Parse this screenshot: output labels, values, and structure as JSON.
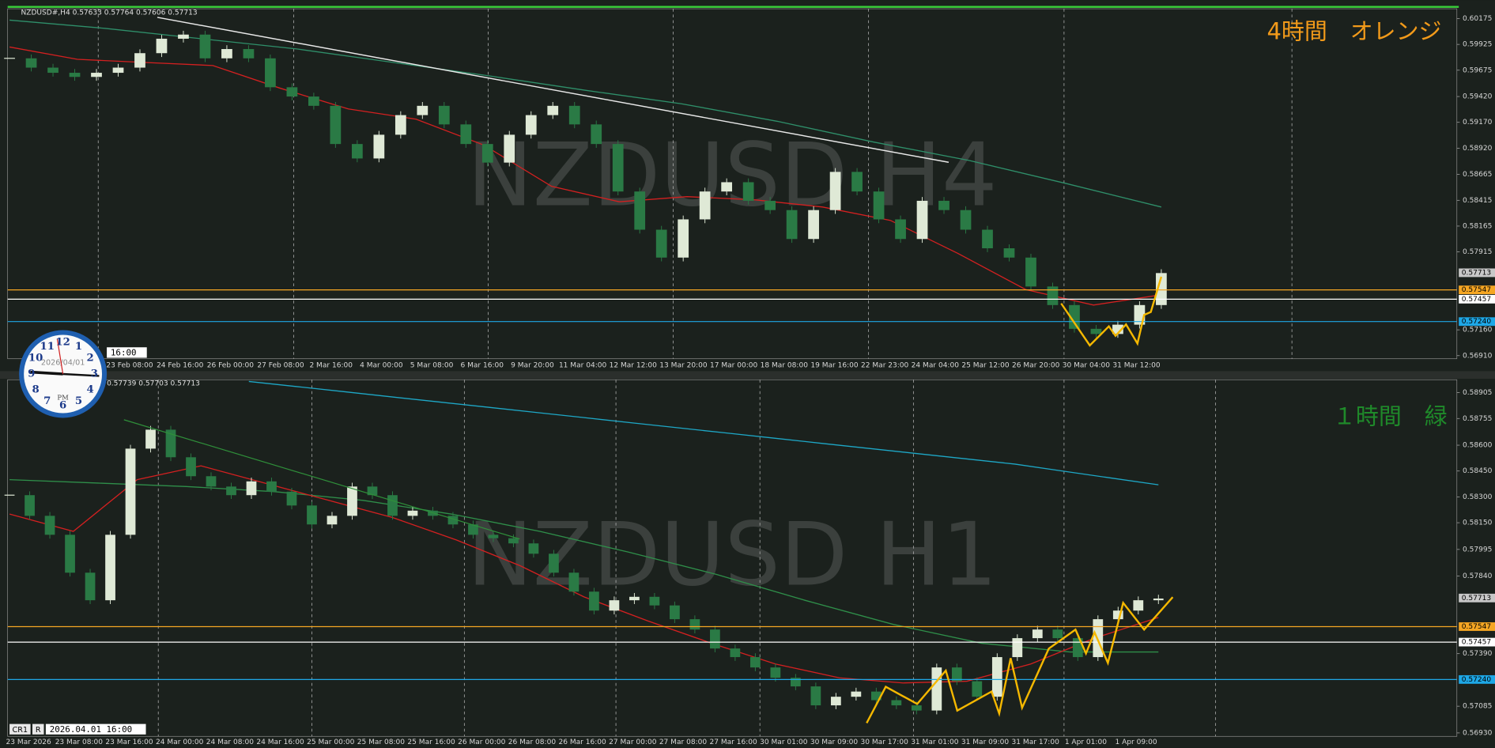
{
  "panels": [
    {
      "header": "NZDUSD#,H4  0.57633 0.57764 0.57606 0.57713",
      "watermark": "NZDUSD H4",
      "annotation": "4時間　オレンジ",
      "annotation_color": "#f29a1a",
      "time_box": "16:00",
      "ylim": [
        0.5688,
        0.6027
      ],
      "yticks": [
        {
          "value": 0.60175,
          "label": "0.60175"
        },
        {
          "value": 0.59925,
          "label": "0.59925"
        },
        {
          "value": 0.59675,
          "label": "0.59675"
        },
        {
          "value": 0.5942,
          "label": "0.59420"
        },
        {
          "value": 0.5917,
          "label": "0.59170"
        },
        {
          "value": 0.5892,
          "label": "0.58920"
        },
        {
          "value": 0.58665,
          "label": "0.58665"
        },
        {
          "value": 0.58415,
          "label": "0.58415"
        },
        {
          "value": 0.58165,
          "label": "0.58165"
        },
        {
          "value": 0.57915,
          "label": "0.57915"
        },
        {
          "value": 0.5716,
          "label": "0.57160"
        },
        {
          "value": 0.5691,
          "label": "0.56910"
        }
      ],
      "xlabels": [
        "23 Feb 08:00",
        "24 Feb 16:00",
        "26 Feb 00:00",
        "27 Feb 08:00",
        "2 Mar 16:00",
        "4 Mar 00:00",
        "5 Mar 08:00",
        "6 Mar 16:00",
        "9 Mar 20:00",
        "11 Mar 04:00",
        "12 Mar 12:00",
        "13 Mar 20:00",
        "17 Mar 00:00",
        "18 Mar 08:00",
        "19 Mar 16:00",
        "22 Mar 23:00",
        "24 Mar 04:00",
        "25 Mar 12:00",
        "26 Mar 20:00",
        "30 Mar 04:00",
        "31 Mar 12:00"
      ],
      "up_color": "#dfe9d6",
      "down_color": "#2a7a45",
      "close": [
        0.5979,
        0.597,
        0.5965,
        0.5961,
        0.5965,
        0.597,
        0.5984,
        0.5998,
        0.6002,
        0.5979,
        0.5988,
        0.5979,
        0.5951,
        0.5942,
        0.5933,
        0.5896,
        0.5882,
        0.5905,
        0.5924,
        0.5933,
        0.5915,
        0.5896,
        0.5878,
        0.5905,
        0.5924,
        0.5933,
        0.5915,
        0.5896,
        0.585,
        0.5813,
        0.5786,
        0.5823,
        0.585,
        0.5859,
        0.5841,
        0.5832,
        0.5804,
        0.5832,
        0.5869,
        0.585,
        0.5823,
        0.5804,
        0.5841,
        0.5832,
        0.5813,
        0.5795,
        0.5786,
        0.5758,
        0.574,
        0.5717,
        0.5712,
        0.5721,
        0.574,
        0.5771
      ],
      "mas": [
        {
          "color": "#2f8f6a",
          "values": [
            0.6016,
            0.6008,
            0.5998,
            0.5988,
            0.5975,
            0.5962,
            0.5948,
            0.5935,
            0.5918,
            0.5898,
            0.588,
            0.5858,
            0.5835
          ]
        },
        {
          "color": "#d32020",
          "values": [
            0.599,
            0.5978,
            0.5975,
            0.5972,
            0.595,
            0.593,
            0.592,
            0.5895,
            0.5855,
            0.584,
            0.5845,
            0.5842,
            0.5835,
            0.5822,
            0.579,
            0.5755,
            0.574,
            0.575
          ]
        }
      ],
      "levels": [
        {
          "value": 0.57547,
          "label": "0.57547",
          "color": "#f5a623"
        },
        {
          "value": 0.57457,
          "label": "0.57457",
          "color": "#ffffff"
        },
        {
          "value": 0.5724,
          "label": "0.57240",
          "color": "#1ea7e6"
        }
      ],
      "last": {
        "value": 0.57713,
        "label": "0.57713"
      }
    },
    {
      "header": "0.57739 0.57703 0.57713",
      "watermark": "NZDUSD H1",
      "annotation": "１時間　緑",
      "annotation_color": "#1f8a2a",
      "ylim": [
        0.5691,
        0.5898
      ],
      "yticks": [
        {
          "value": 0.58905,
          "label": "0.58905"
        },
        {
          "value": 0.58755,
          "label": "0.58755"
        },
        {
          "value": 0.586,
          "label": "0.58600"
        },
        {
          "value": 0.5845,
          "label": "0.58450"
        },
        {
          "value": 0.583,
          "label": "0.58300"
        },
        {
          "value": 0.5815,
          "label": "0.58150"
        },
        {
          "value": 0.57995,
          "label": "0.57995"
        },
        {
          "value": 0.5784,
          "label": "0.57840"
        },
        {
          "value": 0.5739,
          "label": "0.57390"
        },
        {
          "value": 0.57085,
          "label": "0.57085"
        },
        {
          "value": 0.5693,
          "label": "0.56930"
        }
      ],
      "xlabels": [
        "23 Mar 2026",
        "23 Mar 08:00",
        "23 Mar 16:00",
        "24 Mar 00:00",
        "24 Mar 08:00",
        "24 Mar 16:00",
        "25 Mar 00:00",
        "25 Mar 08:00",
        "25 Mar 16:00",
        "26 Mar 00:00",
        "26 Mar 08:00",
        "26 Mar 16:00",
        "27 Mar 00:00",
        "27 Mar 08:00",
        "27 Mar 16:00",
        "30 Mar 01:00",
        "30 Mar 09:00",
        "30 Mar 17:00",
        "31 Mar 01:00",
        "31 Mar 09:00",
        "31 Mar 17:00",
        "1 Apr 01:00",
        "1 Apr 09:00"
      ],
      "up_color": "#dfe9d6",
      "down_color": "#2a7a45",
      "close": [
        0.5831,
        0.5819,
        0.5808,
        0.5786,
        0.577,
        0.5808,
        0.5858,
        0.5869,
        0.5853,
        0.5842,
        0.5836,
        0.5831,
        0.5839,
        0.5833,
        0.5825,
        0.5814,
        0.5819,
        0.5836,
        0.5831,
        0.5819,
        0.5822,
        0.5819,
        0.5814,
        0.5808,
        0.5806,
        0.5803,
        0.5797,
        0.5786,
        0.5775,
        0.5764,
        0.577,
        0.5772,
        0.5767,
        0.5759,
        0.5753,
        0.5742,
        0.5737,
        0.5731,
        0.5725,
        0.572,
        0.5709,
        0.5714,
        0.5717,
        0.5712,
        0.5709,
        0.5706,
        0.5731,
        0.5723,
        0.5714,
        0.5737,
        0.5748,
        0.5753,
        0.5748,
        0.5737,
        0.5759,
        0.5764,
        0.577,
        0.5771
      ],
      "mas": [
        {
          "color": "#1ea7c6",
          "values": [
            null,
            null,
            null,
            null,
            null,
            0.5897,
            0.5894,
            0.5891,
            0.5888,
            0.5885,
            0.5882,
            0.5879,
            0.5876,
            0.5873,
            0.587,
            0.5867,
            0.5864,
            0.5861,
            0.5858,
            0.5855,
            0.5852,
            0.5849,
            0.5845,
            0.5841,
            0.5837
          ]
        },
        {
          "color": "#2f8f4a",
          "values": [
            0.584,
            0.5838,
            0.5836,
            0.5833,
            0.5828,
            0.582,
            0.581,
            0.5798,
            0.5785,
            0.577,
            0.5756,
            0.5745,
            0.574,
            0.574
          ]
        },
        {
          "color": "#d32020",
          "values": [
            0.582,
            0.581,
            0.584,
            0.5848,
            0.5838,
            0.5828,
            0.5818,
            0.5805,
            0.579,
            0.5772,
            0.5758,
            0.5745,
            0.5733,
            0.5725,
            0.5722,
            0.5723,
            0.5733,
            0.5748,
            0.576
          ]
        }
      ],
      "levels": [
        {
          "value": 0.57547,
          "label": "0.57547",
          "color": "#f5a623"
        },
        {
          "value": 0.57457,
          "label": "0.57457",
          "color": "#ffffff"
        },
        {
          "value": 0.5724,
          "label": "0.57240",
          "color": "#1ea7e6"
        }
      ],
      "last": {
        "value": 0.57713,
        "label": "0.57713"
      }
    }
  ],
  "clock": {
    "date": "2026/04/01",
    "ampm": "PM",
    "numbers": [
      12,
      1,
      2,
      3,
      4,
      5,
      6,
      7,
      8,
      9,
      10,
      11
    ]
  },
  "status": {
    "cr": "CR1",
    "r": "R",
    "time": "2026.04.01 16:00"
  }
}
